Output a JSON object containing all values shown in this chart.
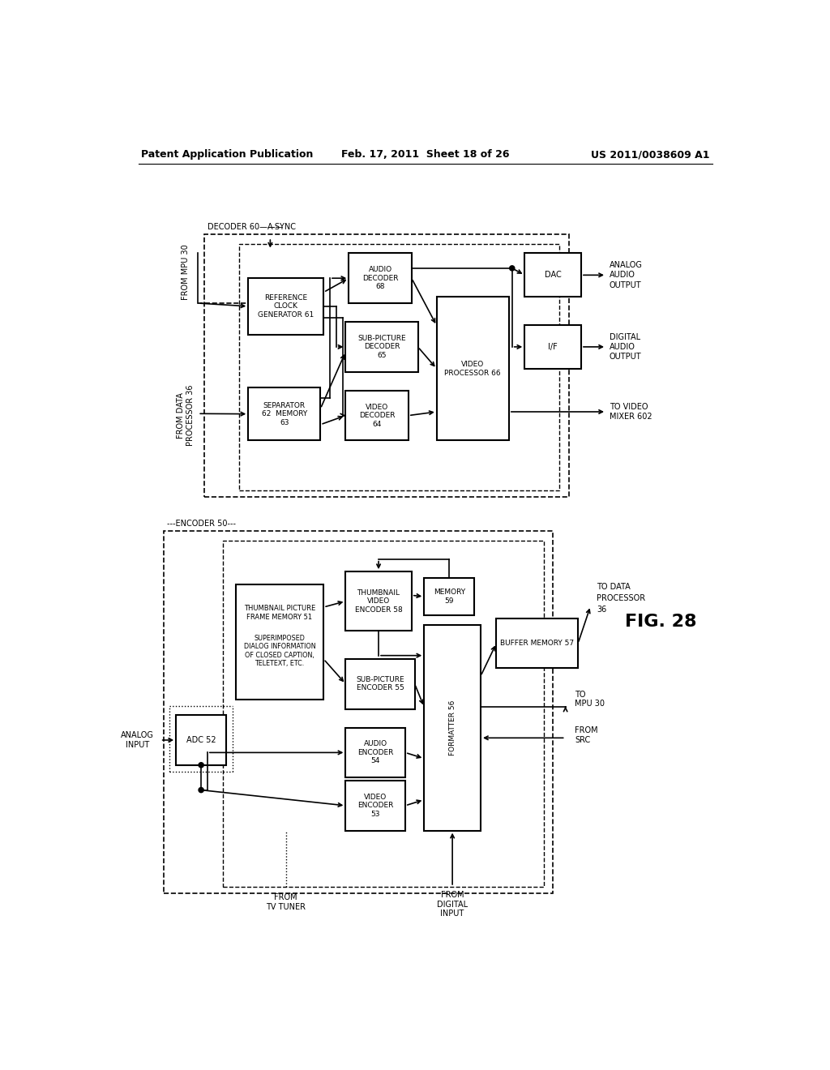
{
  "page_header": {
    "left": "Patent Application Publication",
    "center": "Feb. 17, 2011  Sheet 18 of 26",
    "right": "US 2011/0038609 A1"
  },
  "figure_label": "FIG. 28",
  "background_color": "#ffffff",
  "line_color": "#000000"
}
